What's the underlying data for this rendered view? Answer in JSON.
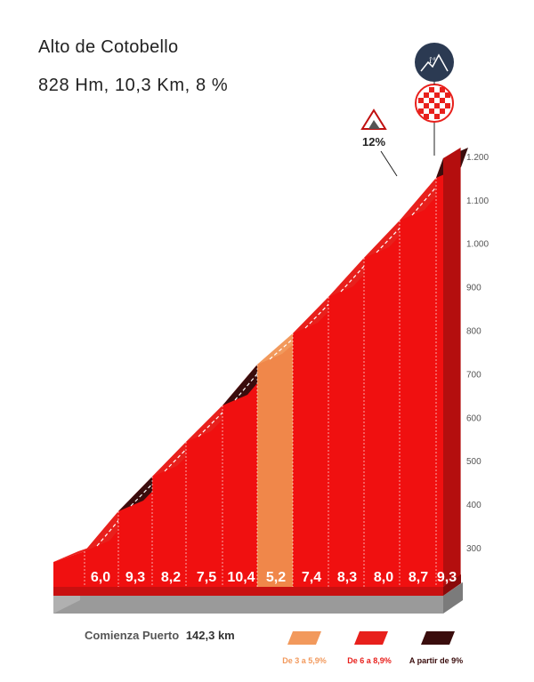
{
  "title": "Alto de Cotobello",
  "subtitle": "828 Hm, 10,3 Km, 8 %",
  "chart_data": {
    "type": "area",
    "title": "Alto de Cotobello",
    "subtitle": "828 Hm, 10,3 Km, 8 %",
    "y_ticks": [
      "300",
      "400",
      "500",
      "600",
      "700",
      "800",
      "900",
      "1.000",
      "1.100",
      "1.200"
    ],
    "ylim": [
      300,
      1200
    ],
    "segments": [
      {
        "km": 1,
        "grade": "6,0",
        "category": "high"
      },
      {
        "km": 2,
        "grade": "9,3",
        "category": "steep"
      },
      {
        "km": 3,
        "grade": "8,2",
        "category": "high"
      },
      {
        "km": 4,
        "grade": "7,5",
        "category": "high"
      },
      {
        "km": 5,
        "grade": "10,4",
        "category": "steep"
      },
      {
        "km": 6,
        "grade": "5,2",
        "category": "medium"
      },
      {
        "km": 7,
        "grade": "7,4",
        "category": "high"
      },
      {
        "km": 8,
        "grade": "8,3",
        "category": "high"
      },
      {
        "km": 9,
        "grade": "8,0",
        "category": "high"
      },
      {
        "km": 10,
        "grade": "8,7",
        "category": "high"
      },
      {
        "km": 10.3,
        "grade": "9,3",
        "category": "steep"
      }
    ],
    "start_label": "Comienza Puerto",
    "start_km": "142,3 km",
    "max_grade": "12%",
    "category_badge": "1ª",
    "legend": [
      {
        "label": "De 3 a 5,9%",
        "color": "#f2995c"
      },
      {
        "label": "De 6 a 8,9%",
        "color": "#e8201c"
      },
      {
        "label": "A partir de 9%",
        "color": "#3a0d0d"
      }
    ]
  }
}
